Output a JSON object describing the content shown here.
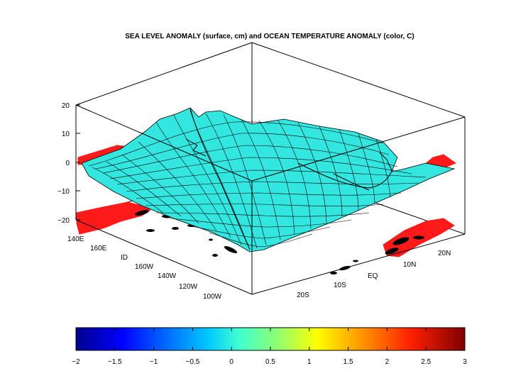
{
  "chart_data": {
    "type": "surface3d",
    "title": "SEA LEVEL ANOMALY (surface, cm) and OCEAN TEMPERATURE ANOMALY (color, C)",
    "z_axis": {
      "ticks": [
        "20",
        "10",
        "0",
        "−10",
        "−20"
      ],
      "range": [
        -20,
        20
      ]
    },
    "lon_axis": {
      "ticks": [
        "140E",
        "160E",
        "ID",
        "160W",
        "140W",
        "120W",
        "100W"
      ]
    },
    "lat_axis": {
      "ticks": [
        "20S",
        "10S",
        "EQ",
        "10N",
        "20N"
      ]
    },
    "colorbar": {
      "range": [
        -2,
        3
      ],
      "ticks": [
        "−2",
        "−1.5",
        "−1",
        "−0.5",
        "0",
        "0.5",
        "1",
        "1.5",
        "2",
        "2.5",
        "3"
      ]
    },
    "colors": {
      "surface": "#33e6e0",
      "mesh": "#000000",
      "land": "#ff1a1a",
      "box": "#000000"
    }
  }
}
